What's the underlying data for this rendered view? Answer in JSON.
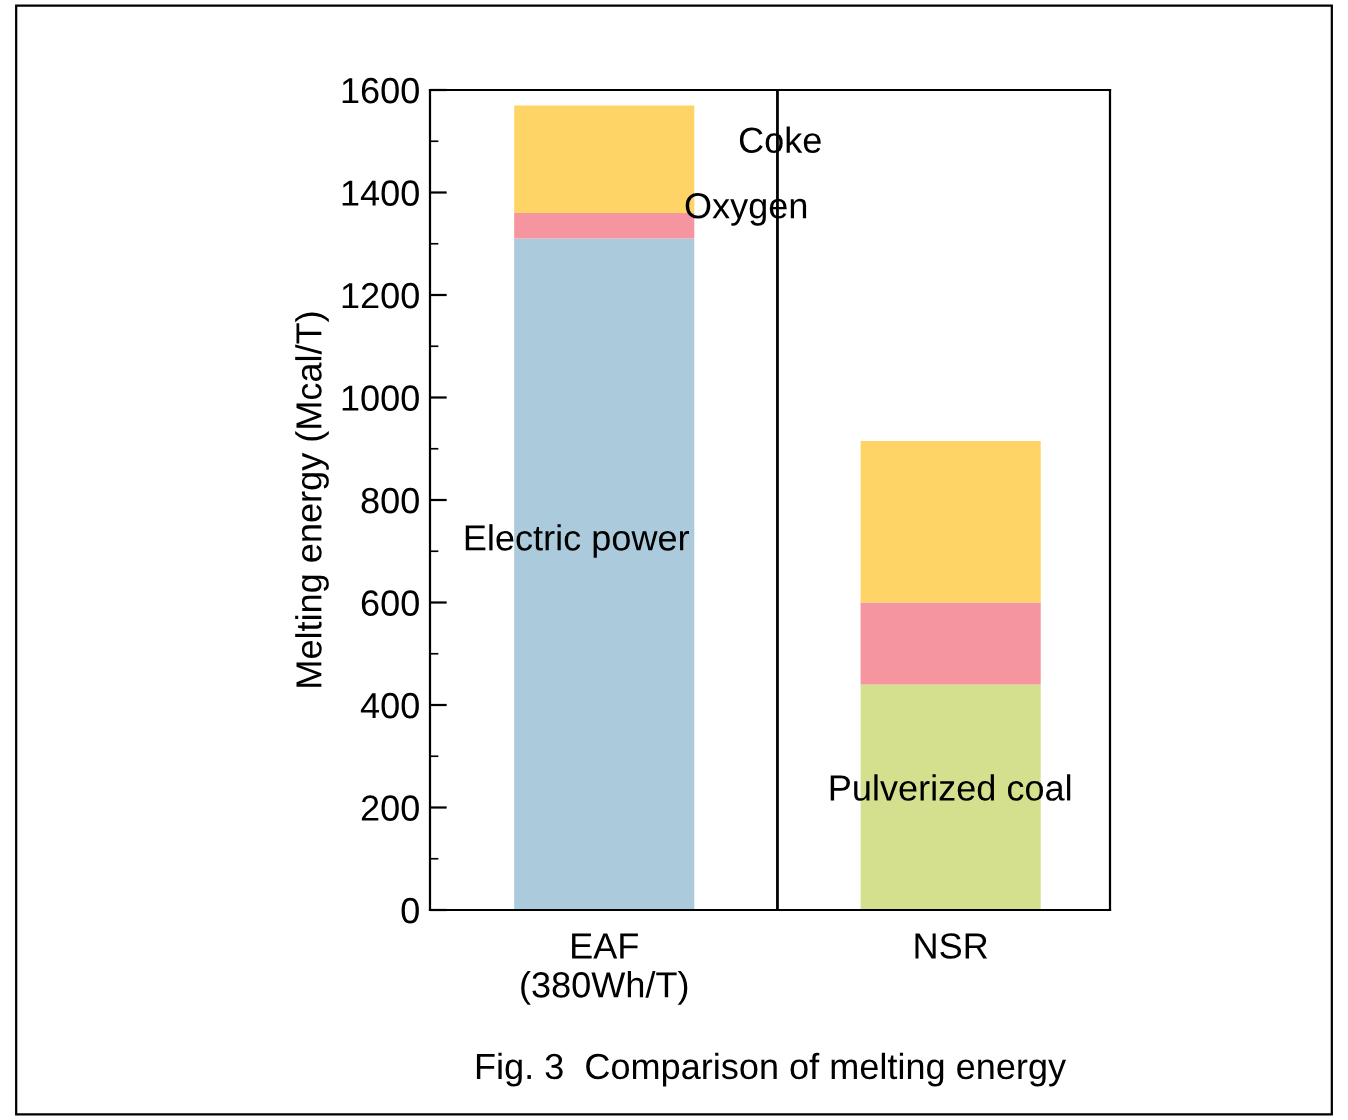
{
  "chart_data": {
    "type": "bar",
    "title": "Fig. 3  Comparison of melting energy",
    "ylabel": "Melting energy (Mcal/T)",
    "categories": [
      "EAF\n(380Wh/T)",
      "NSR"
    ],
    "stacked": true,
    "series": [
      {
        "colors": [
          "#abcbdc",
          "#d4e08e"
        ],
        "values": [
          1310,
          440
        ]
      },
      {
        "color": "#f4959f",
        "values": [
          50,
          160
        ]
      },
      {
        "color": "#ffd466",
        "values": [
          210,
          315
        ]
      }
    ],
    "ylim": [
      0,
      1600
    ],
    "yticks": [
      0,
      200,
      400,
      600,
      800,
      1000,
      1200,
      1400,
      1600
    ],
    "grid": false,
    "legend": false,
    "annotations": [
      "Coke",
      "Oxygen",
      "Electric power",
      "Pulverized coal"
    ]
  }
}
